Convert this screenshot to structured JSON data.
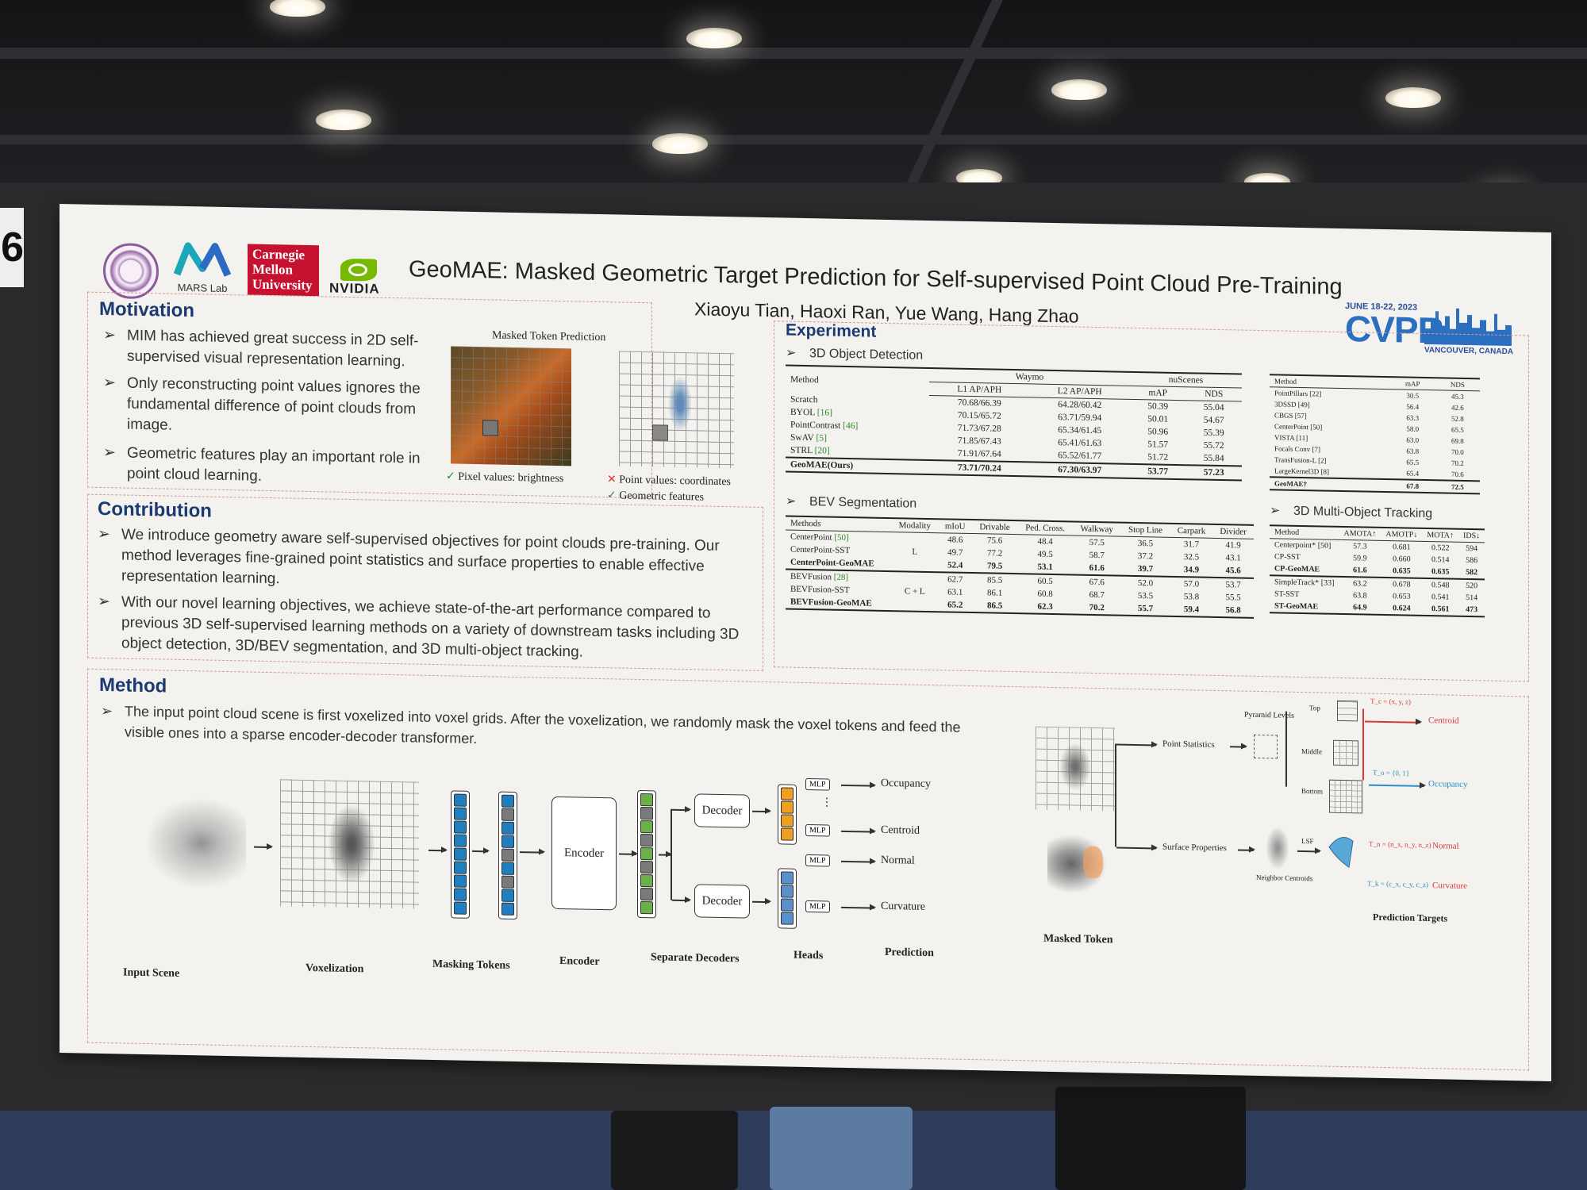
{
  "poster": {
    "title": "GeoMAE: Masked Geometric Target Prediction for Self-supervised Point Cloud Pre-Training",
    "authors": "Xiaoyu Tian, Haoxi Ran, Yue Wang, Hang Zhao",
    "booth_number": "6",
    "logos": {
      "mars": "MARS Lab",
      "cmu": [
        "Carnegie",
        "Mellon",
        "University"
      ],
      "nvidia": "NVIDIA",
      "cvpr_dates": "JUNE 18-22, 2023",
      "cvpr": "CVPR",
      "cvpr_location": "VANCOUVER, CANADA"
    }
  },
  "motivation": {
    "title": "Motivation",
    "bullets": [
      "MIM has achieved great success in 2D self-supervised visual representation learning.",
      "Only reconstructing point values ignores the fundamental difference of point clouds from image.",
      "Geometric features play an important role in point cloud learning."
    ],
    "figure_title": "Masked Token Prediction",
    "left_caption": "Pixel values: brightness",
    "right_caption_1": "Point values: coordinates",
    "right_caption_2": "Geometric features"
  },
  "contribution": {
    "title": "Contribution",
    "bullets": [
      "We introduce geometry aware self-supervised objectives for point clouds pre-training. Our method leverages fine-grained point statistics and surface properties to enable effective representation learning.",
      "With our novel learning objectives, we achieve state-of-the-art performance compared to previous 3D self-supervised learning methods on a variety of downstream tasks including 3D object detection, 3D/BEV segmentation, and 3D multi-object tracking."
    ]
  },
  "experiment": {
    "title": "Experiment",
    "det_title": "3D Object Detection",
    "det_table": {
      "col_method": "Method",
      "group_waymo": "Waymo",
      "group_nus": "nuScenes",
      "cols": [
        "L1 AP/APH",
        "L2 AP/APH",
        "mAP",
        "NDS"
      ],
      "rows": [
        {
          "m": "Scratch",
          "ref": "",
          "v": [
            "70.68/66.39",
            "64.28/60.42",
            "50.39",
            "55.04"
          ]
        },
        {
          "m": "BYOL",
          "ref": "[16]",
          "v": [
            "70.15/65.72",
            "63.71/59.94",
            "50.01",
            "54.67"
          ]
        },
        {
          "m": "PointContrast",
          "ref": "[46]",
          "v": [
            "71.73/67.28",
            "65.34/61.45",
            "50.96",
            "55.39"
          ]
        },
        {
          "m": "SwAV",
          "ref": "[5]",
          "v": [
            "71.85/67.43",
            "65.41/61.63",
            "51.57",
            "55.72"
          ]
        },
        {
          "m": "STRL",
          "ref": "[20]",
          "v": [
            "71.91/67.64",
            "65.52/61.77",
            "51.72",
            "55.84"
          ]
        },
        {
          "m": "GeoMAE(Ours)",
          "ref": "",
          "v": [
            "73.71/70.24",
            "67.30/63.97",
            "53.77",
            "57.23"
          ]
        }
      ]
    },
    "nus_table": {
      "cols": [
        "Method",
        "mAP",
        "NDS"
      ],
      "rows": [
        [
          "PointPillars [22]",
          "30.5",
          "45.3"
        ],
        [
          "3DSSD [49]",
          "56.4",
          "42.6"
        ],
        [
          "CBGS [57]",
          "63.3",
          "52.8"
        ],
        [
          "CenterPoint [50]",
          "58.0",
          "65.5"
        ],
        [
          "VISTA [11]",
          "63.0",
          "69.8"
        ],
        [
          "Focals Conv [7]",
          "63.8",
          "70.0"
        ],
        [
          "TransFusion-L [2]",
          "65.5",
          "70.2"
        ],
        [
          "LargeKernel3D [8]",
          "65.4",
          "70.6"
        ],
        [
          "GeoMAE†",
          "67.8",
          "72.5"
        ]
      ]
    },
    "bev_title": "BEV Segmentation",
    "bev_table": {
      "cols": [
        "Methods",
        "Modality",
        "mIoU",
        "Drivable",
        "Ped. Cross.",
        "Walkway",
        "Stop Line",
        "Carpark",
        "Divider"
      ],
      "rows": [
        {
          "m": "CenterPoint",
          "ref": "[50]",
          "mod": "",
          "v": [
            "48.6",
            "75.6",
            "48.4",
            "57.5",
            "36.5",
            "31.7",
            "41.9"
          ]
        },
        {
          "m": "CenterPoint-SST",
          "ref": "",
          "mod": "L",
          "v": [
            "49.7",
            "77.2",
            "49.5",
            "58.7",
            "37.2",
            "32.5",
            "43.1"
          ]
        },
        {
          "m": "CenterPoint-GeoMAE",
          "ref": "",
          "mod": "",
          "v": [
            "52.4",
            "79.5",
            "53.1",
            "61.6",
            "39.7",
            "34.9",
            "45.6"
          ]
        },
        {
          "m": "BEVFusion",
          "ref": "[28]",
          "mod": "",
          "v": [
            "62.7",
            "85.5",
            "60.5",
            "67.6",
            "52.0",
            "57.0",
            "53.7"
          ]
        },
        {
          "m": "BEVFusion-SST",
          "ref": "",
          "mod": "C + L",
          "v": [
            "63.1",
            "86.1",
            "60.8",
            "68.7",
            "53.5",
            "53.8",
            "55.5"
          ]
        },
        {
          "m": "BEVFusion-GeoMAE",
          "ref": "",
          "mod": "",
          "v": [
            "65.2",
            "86.5",
            "62.3",
            "70.2",
            "55.7",
            "59.4",
            "56.8"
          ]
        }
      ]
    },
    "mot_title": "3D Multi-Object Tracking",
    "mot_table": {
      "cols": [
        "Method",
        "AMOTA↑",
        "AMOTP↓",
        "MOTA↑",
        "IDS↓"
      ],
      "rows": [
        [
          "Centerpoint* [50]",
          "57.3",
          "0.681",
          "0.522",
          "594"
        ],
        [
          "CP-SST",
          "59.9",
          "0.660",
          "0.514",
          "586"
        ],
        [
          "CP-GeoMAE",
          "61.6",
          "0.635",
          "0.635",
          "582"
        ],
        [
          "SimpleTrack* [33]",
          "63.2",
          "0.678",
          "0.548",
          "520"
        ],
        [
          "ST-SST",
          "63.8",
          "0.653",
          "0.541",
          "514"
        ],
        [
          "ST-GeoMAE",
          "64.9",
          "0.624",
          "0.561",
          "473"
        ]
      ]
    }
  },
  "method": {
    "title": "Method",
    "bullet": "The input point cloud scene is first voxelized into voxel grids. After the voxelization, we randomly mask the voxel tokens and feed the visible ones into a sparse encoder-decoder transformer.",
    "labels": {
      "input": "Input Scene",
      "voxel": "Voxelization",
      "masking": "Masking Tokens",
      "encoder": "Encoder",
      "decoders": "Separate Decoders",
      "heads": "Heads",
      "prediction": "Prediction",
      "encoder_box": "Encoder",
      "decoder_box": "Decoder",
      "mlp": "MLP",
      "ellipsis": "⋮",
      "occupancy": "Occupancy",
      "centroid": "Centroid",
      "normal": "Normal",
      "curvature": "Curvature",
      "masked_token": "Masked Token",
      "point_stats": "Point Statistics",
      "pyramid": "Pyramid Levels",
      "top": "Top",
      "middle": "Middle",
      "bottom": "Bottom",
      "surface": "Surface Properties",
      "neighbor": "Neighbor Centroids",
      "lsf": "LSF",
      "pred_targets": "Prediction Targets",
      "t_c": "T_c = (x, y, z)",
      "t_o": "T_o = {0, 1}",
      "t_n": "T_n = (n_x, n_y, n_z)",
      "t_k": "T_k = (c_x, c_y, c_z)",
      "centroid_r": "Centroid",
      "occupancy_r": "Occupancy",
      "normal_r": "Normal",
      "curvature_r": "Curvature"
    }
  },
  "colors": {
    "poster_bg": "#f3f2ee",
    "title_blue": "#1c3a72",
    "border_red": "#d49a9a",
    "token_blue": "#1f7fc0",
    "token_green": "#6cb04a",
    "token_orange": "#f0a020",
    "token_lightblue": "#5b8fd0",
    "token_gray": "#7a7a7a",
    "cmu_red": "#c41230",
    "nvidia_green": "#76b900",
    "target_red": "#d63a3a",
    "target_blue": "#2a8fc8"
  },
  "icons": [
    "university-seal-icon",
    "mars-logo-icon",
    "nvidia-eye-icon",
    "cvpr-skyline-icon",
    "check-icon",
    "cross-icon",
    "ceiling-light-icon"
  ]
}
